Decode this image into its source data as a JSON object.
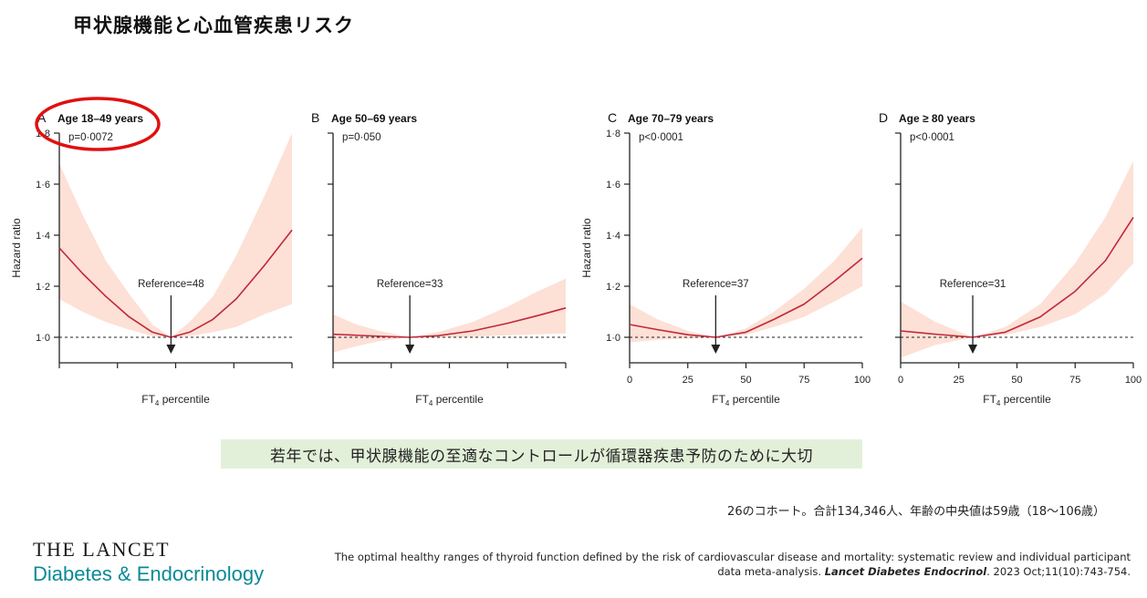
{
  "page": {
    "title": "甲状腺機能と心血管疾患リスク",
    "callout": "若年では、甲状腺機能の至適なコントロールが循環器疾患予防のために大切",
    "cohort_note": "26のコホート。合計134,346人、年齢の中央値は59歳（18〜106歳）",
    "brand": {
      "line1": "THE LANCET",
      "line2": "Diabetes & Endocrinology"
    },
    "citation": {
      "text": "The optimal healthy ranges of thyroid function defined by the risk of cardiovascular disease and mortality: systematic review and individual participant data meta-analysis.",
      "journal": "Lancet Diabetes Endocrinol",
      "details": ". 2023 Oct;11(10):743-754."
    }
  },
  "colors": {
    "curve": "#c0283a",
    "band": "#fde0d6",
    "highlight_circle": "#e01010"
  },
  "chart_data": [
    {
      "type": "line",
      "panel_letter": "A",
      "title": "Age 18–49 years",
      "p_value": "p=0·0072",
      "reference_label": "Reference=48",
      "reference_x": 48,
      "xlabel": "FT4 percentile",
      "ylabel": "Hazard ratio",
      "xlim": [
        0,
        100
      ],
      "ylim": [
        0.9,
        1.8
      ],
      "yticks": [
        "1·0",
        "1·2",
        "1·4",
        "1·6",
        "1·8"
      ],
      "xticks": [],
      "x": [
        0,
        10,
        20,
        30,
        40,
        48,
        56,
        66,
        76,
        88,
        100
      ],
      "hr": [
        1.35,
        1.25,
        1.16,
        1.08,
        1.02,
        1.0,
        1.02,
        1.07,
        1.15,
        1.28,
        1.42
      ],
      "lower": [
        1.15,
        1.1,
        1.06,
        1.03,
        1.005,
        1.0,
        1.005,
        1.02,
        1.04,
        1.09,
        1.13
      ],
      "upper": [
        1.68,
        1.48,
        1.3,
        1.17,
        1.05,
        1.0,
        1.06,
        1.16,
        1.32,
        1.55,
        1.8
      ],
      "highlighted": true
    },
    {
      "type": "line",
      "panel_letter": "B",
      "title": "Age 50–69 years",
      "p_value": "p=0·050",
      "reference_label": "Reference=33",
      "reference_x": 33,
      "xlabel": "FT4 percentile",
      "ylabel": "",
      "xlim": [
        0,
        100
      ],
      "ylim": [
        0.9,
        1.8
      ],
      "yticks": [],
      "xticks": [],
      "x": [
        0,
        10,
        20,
        33,
        45,
        60,
        75,
        88,
        100
      ],
      "hr": [
        1.012,
        1.008,
        1.004,
        1.0,
        1.006,
        1.025,
        1.055,
        1.085,
        1.115
      ],
      "lower": [
        0.94,
        0.965,
        0.985,
        1.0,
        0.998,
        1.002,
        1.008,
        1.012,
        1.015
      ],
      "upper": [
        1.09,
        1.05,
        1.025,
        1.0,
        1.02,
        1.06,
        1.12,
        1.18,
        1.23
      ],
      "highlighted": false
    },
    {
      "type": "line",
      "panel_letter": "C",
      "title": "Age 70–79 years",
      "p_value": "p<0·0001",
      "reference_label": "Reference=37",
      "reference_x": 37,
      "xlabel": "FT4 percentile",
      "ylabel": "Hazard ratio",
      "xlim": [
        0,
        100
      ],
      "ylim": [
        0.9,
        1.8
      ],
      "yticks": [
        "1·0",
        "1·2",
        "1·4",
        "1·6",
        "1·8"
      ],
      "xticks": [
        "0",
        "25",
        "50",
        "75",
        "100"
      ],
      "x": [
        0,
        12,
        25,
        37,
        50,
        62,
        75,
        88,
        100
      ],
      "hr": [
        1.05,
        1.03,
        1.01,
        1.0,
        1.02,
        1.07,
        1.13,
        1.22,
        1.31
      ],
      "lower": [
        0.98,
        0.99,
        0.995,
        1.0,
        1.01,
        1.04,
        1.08,
        1.14,
        1.2
      ],
      "upper": [
        1.13,
        1.07,
        1.025,
        1.0,
        1.035,
        1.1,
        1.19,
        1.3,
        1.43
      ],
      "highlighted": false
    },
    {
      "type": "line",
      "panel_letter": "D",
      "title": "Age ≥ 80 years",
      "p_value": "p<0·0001",
      "reference_label": "Reference=31",
      "reference_x": 31,
      "xlabel": "FT4 percentile",
      "ylabel": "",
      "xlim": [
        0,
        100
      ],
      "ylim": [
        0.9,
        1.8
      ],
      "yticks": [],
      "xticks": [
        "0",
        "25",
        "50",
        "75",
        "100"
      ],
      "x": [
        0,
        15,
        31,
        45,
        60,
        75,
        88,
        100
      ],
      "hr": [
        1.025,
        1.012,
        1.0,
        1.02,
        1.08,
        1.18,
        1.3,
        1.47
      ],
      "lower": [
        0.92,
        0.97,
        1.0,
        1.01,
        1.04,
        1.09,
        1.17,
        1.29
      ],
      "upper": [
        1.14,
        1.06,
        1.0,
        1.04,
        1.13,
        1.29,
        1.47,
        1.69
      ],
      "highlighted": false
    }
  ]
}
